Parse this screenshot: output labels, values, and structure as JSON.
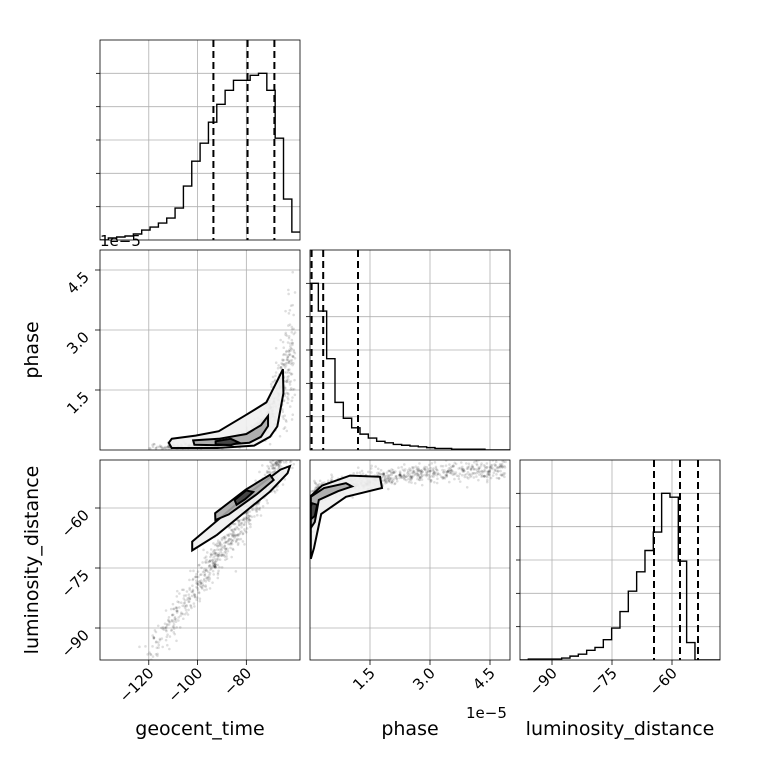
{
  "chart_data": {
    "type": "corner",
    "parameters": [
      "geocent_time",
      "phase",
      "luminosity_distance"
    ],
    "axis_labels": {
      "geocent_time": "geocent_time",
      "phase": "phase",
      "luminosity_distance": "luminosity_distance"
    },
    "ranges": {
      "geocent_time": [
        -140,
        -58
      ],
      "phase": [
        0,
        5.0
      ],
      "luminosity_distance": [
        -98,
        -48
      ]
    },
    "offsets": {
      "phase": "1e−5"
    },
    "ticks": {
      "geocent_time": {
        "values": [
          -120,
          -100,
          -80
        ],
        "labels": [
          "−120",
          "−100",
          "−80"
        ]
      },
      "phase": {
        "values": [
          1.5,
          3.0,
          4.5
        ],
        "labels": [
          "1.5",
          "3.0",
          "4.5"
        ]
      },
      "luminosity_distance": {
        "values": [
          -90,
          -75,
          -60
        ],
        "labels": [
          "−90",
          "−75",
          "−60"
        ]
      }
    },
    "grid": true,
    "histograms": {
      "geocent_time": {
        "bin_start": -140,
        "bin_width": 3.42,
        "counts": [
          0,
          2,
          3,
          4,
          6,
          10,
          13,
          17,
          22,
          32,
          54,
          79,
          97,
          118,
          136,
          150,
          160,
          160,
          165,
          167,
          150,
          102,
          41,
          8
        ],
        "quantiles": [
          -93.5,
          -79.5,
          -68.5
        ]
      },
      "phase": {
        "bin_start": 0,
        "bin_width": 0.2083,
        "counts": [
          210,
          175,
          115,
          60,
          40,
          28,
          20,
          15,
          11,
          9,
          7,
          6,
          5,
          4,
          3,
          2,
          2,
          1,
          1,
          1,
          1,
          0,
          0,
          0
        ],
        "quantiles": [
          0.04,
          0.33,
          1.2
        ]
      },
      "luminosity_distance": {
        "bin_start": -98,
        "bin_width": 2.083,
        "counts": [
          0,
          1,
          1,
          1,
          1,
          2,
          4,
          6,
          10,
          13,
          21,
          33,
          50,
          71,
          91,
          113,
          132,
          172,
          168,
          102,
          18,
          0,
          0,
          0
        ],
        "quantiles": [
          -64.5,
          -58.0,
          -53.5
        ]
      }
    },
    "pairs": [
      {
        "x": "geocent_time",
        "y": "phase",
        "samples": {
          "x_from": -120,
          "x_to": -60,
          "y_model": "exp",
          "y_base": 0.03,
          "y_scale": 2.8,
          "y_rate": 0.12,
          "count": 900
        },
        "contours": [
          {
            "level": 1,
            "points": [
              [
                -110.6,
                0.28
              ],
              [
                -100.8,
                0.36
              ],
              [
                -91.3,
                0.47
              ],
              [
                -80.3,
                0.87
              ],
              [
                -71.8,
                1.19
              ],
              [
                -67.0,
                1.77
              ],
              [
                -65.0,
                2.02
              ],
              [
                -64.8,
                1.42
              ],
              [
                -67.3,
                0.59
              ],
              [
                -70.3,
                0.33
              ],
              [
                -76.8,
                0.11
              ],
              [
                -91.9,
                0.05
              ],
              [
                -110.6,
                0.05
              ],
              [
                -111.8,
                0.18
              ]
            ]
          },
          {
            "level": 2,
            "points": [
              [
                -101.8,
                0.24
              ],
              [
                -91.3,
                0.28
              ],
              [
                -80.0,
                0.4
              ],
              [
                -74.0,
                0.62
              ],
              [
                -71.1,
                0.85
              ],
              [
                -71.1,
                0.6
              ],
              [
                -74.0,
                0.33
              ],
              [
                -78.8,
                0.18
              ],
              [
                -91.8,
                0.12
              ],
              [
                -101.3,
                0.13
              ]
            ]
          },
          {
            "level": 3,
            "points": [
              [
                -92.6,
                0.22
              ],
              [
                -86.4,
                0.28
              ],
              [
                -83.2,
                0.19
              ],
              [
                -86.3,
                0.12
              ],
              [
                -92.6,
                0.14
              ]
            ]
          }
        ]
      },
      {
        "x": "geocent_time",
        "y": "luminosity_distance",
        "samples": {
          "x_from": -125,
          "x_to": -58,
          "y_model": "linear",
          "y_slope": 0.88,
          "y_intercept": 9.0,
          "count": 900
        },
        "contours": [
          {
            "level": 1,
            "points": [
              [
                -102.2,
                -68.4
              ],
              [
                -90.7,
                -62.5
              ],
              [
                -78.7,
                -56.2
              ],
              [
                -66.0,
                -50.4
              ],
              [
                -62.1,
                -49.5
              ],
              [
                -63.1,
                -51.3
              ],
              [
                -70.3,
                -55.9
              ],
              [
                -81.6,
                -61.5
              ],
              [
                -92.0,
                -66.7
              ],
              [
                -102.2,
                -70.6
              ]
            ]
          },
          {
            "level": 2,
            "points": [
              [
                -92.8,
                -61.3
              ],
              [
                -80.2,
                -55.4
              ],
              [
                -70.3,
                -51.7
              ],
              [
                -68.8,
                -53.0
              ],
              [
                -75.6,
                -56.5
              ],
              [
                -87.2,
                -61.6
              ],
              [
                -92.7,
                -63.0
              ]
            ]
          },
          {
            "level": 3,
            "points": [
              [
                -84.8,
                -58.0
              ],
              [
                -80.0,
                -55.6
              ],
              [
                -77.2,
                -56.0
              ],
              [
                -80.5,
                -57.8
              ],
              [
                -84.0,
                -59.2
              ]
            ]
          }
        ]
      },
      {
        "x": "phase",
        "y": "luminosity_distance",
        "samples": {
          "x_from": 0,
          "x_to": 4.9,
          "y_model": "log",
          "y_base": -57.0,
          "y_scale": 3.0,
          "y_rate": 1.8,
          "count": 900
        },
        "contours": [
          {
            "level": 1,
            "points": [
              [
                0.02,
                -72.7
              ],
              [
                0.1,
                -70.0
              ],
              [
                0.28,
                -61.5
              ],
              [
                0.9,
                -57.2
              ],
              [
                1.8,
                -55.0
              ],
              [
                1.75,
                -52.2
              ],
              [
                1.0,
                -51.9
              ],
              [
                0.3,
                -54.4
              ],
              [
                0.02,
                -57.0
              ]
            ]
          },
          {
            "level": 2,
            "points": [
              [
                0.02,
                -65.0
              ],
              [
                0.12,
                -63.5
              ],
              [
                0.22,
                -58.0
              ],
              [
                0.7,
                -55.8
              ],
              [
                1.05,
                -54.6
              ],
              [
                0.9,
                -53.8
              ],
              [
                0.35,
                -55.0
              ],
              [
                0.02,
                -57.2
              ]
            ]
          },
          {
            "level": 3,
            "points": [
              [
                0.02,
                -62.8
              ],
              [
                0.12,
                -62.0
              ],
              [
                0.18,
                -59.2
              ],
              [
                0.05,
                -58.8
              ],
              [
                0.02,
                -59.6
              ]
            ]
          }
        ]
      }
    ]
  }
}
